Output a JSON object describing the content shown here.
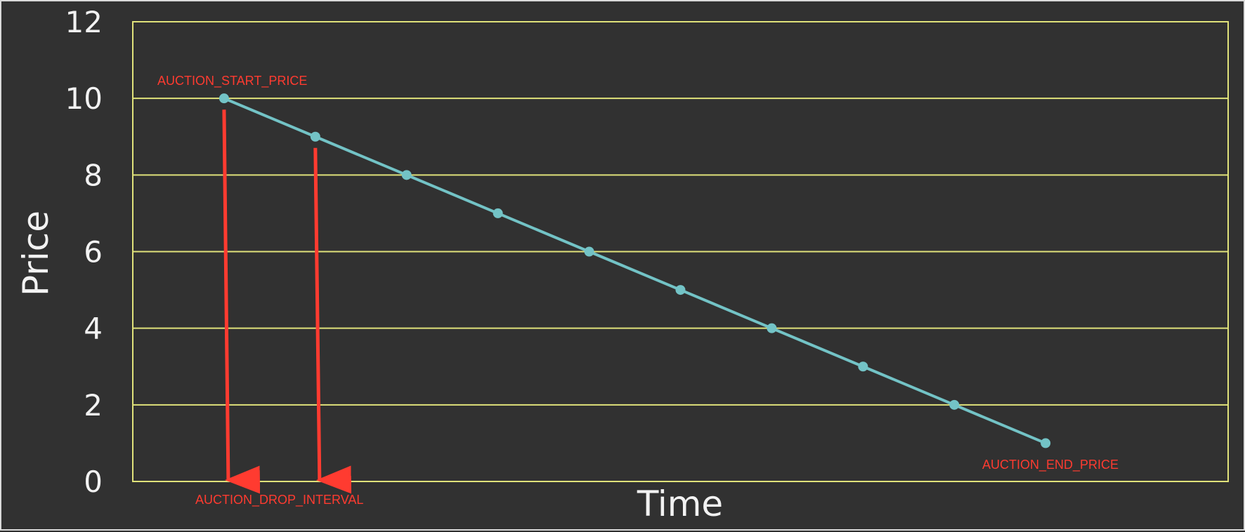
{
  "chart_data": {
    "type": "line",
    "xlabel": "Time",
    "ylabel": "Price",
    "xlim": [
      -1,
      11
    ],
    "ylim": [
      0,
      12
    ],
    "yticks": [
      0,
      2,
      4,
      6,
      8,
      10,
      12
    ],
    "grid": true,
    "series": [
      {
        "x": [
          0,
          1,
          2,
          3,
          4,
          5,
          6,
          7,
          8,
          9
        ],
        "values": [
          10,
          9,
          8,
          7,
          6,
          5,
          4,
          3,
          2,
          1
        ]
      }
    ],
    "annotations": {
      "start_price": "AUCTION_START_PRICE",
      "drop_interval": "AUCTION_DROP_INTERVAL",
      "end_price": "AUCTION_END_PRICE"
    },
    "colors": {
      "background": "#313131",
      "grid": "#e0e27a",
      "line": "#73c3c6",
      "annotation": "#ff3b30",
      "text": "#f2f2f2"
    }
  }
}
